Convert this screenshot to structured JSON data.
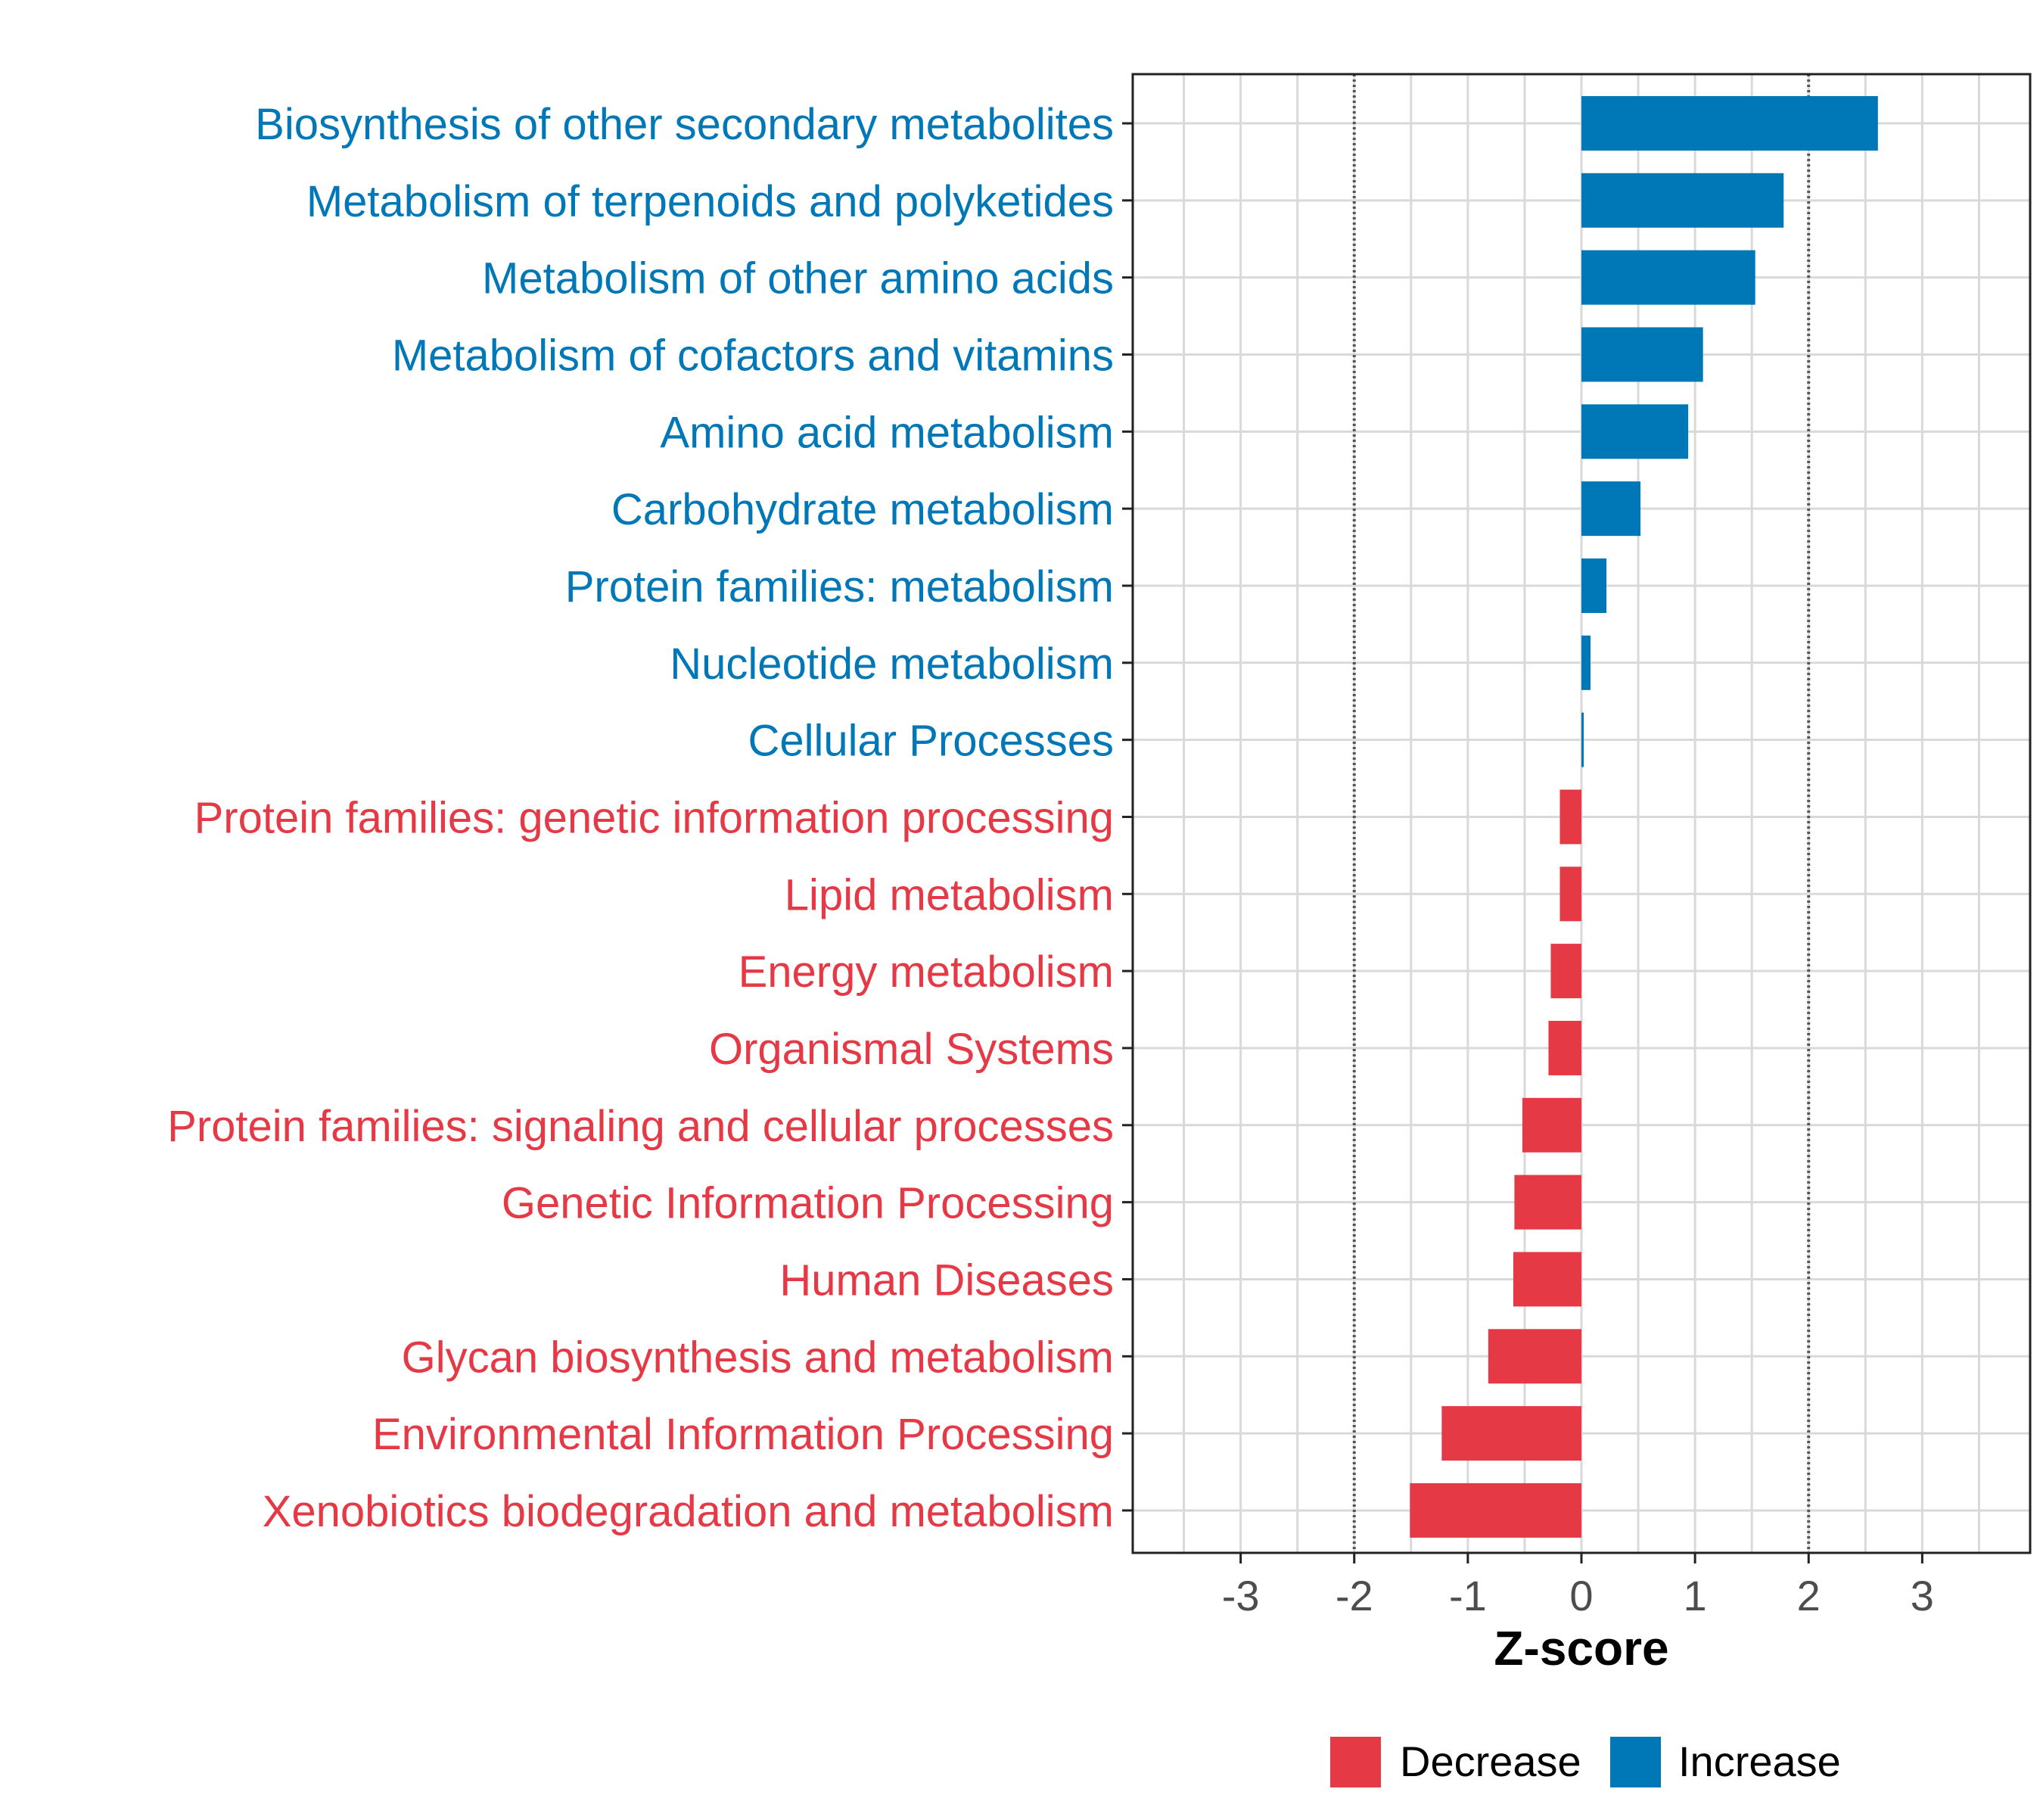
{
  "chart_data": {
    "type": "bar",
    "orientation": "horizontal",
    "title": "",
    "xlabel": "Z-score",
    "ylabel": "",
    "xlim": [
      -3.95,
      3.95
    ],
    "xticks": [
      -3,
      -2,
      -1,
      0,
      1,
      2,
      3
    ],
    "xtick_labels": [
      "-3",
      "-2",
      "-1",
      "0",
      "1",
      "2",
      "3"
    ],
    "reference_lines": [
      -2,
      2
    ],
    "grid": true,
    "legend_position": "bottom",
    "categories": [
      "Biosynthesis of other secondary metabolites",
      "Metabolism of terpenoids and polyketides",
      "Metabolism of other amino acids",
      "Metabolism of cofactors and vitamins",
      "Amino acid metabolism",
      "Carbohydrate metabolism",
      "Protein families: metabolism",
      "Nucleotide metabolism",
      "Cellular Processes",
      "Protein families: genetic information processing",
      "Lipid metabolism",
      "Energy metabolism",
      "Organismal Systems",
      "Protein families: signaling and cellular processes",
      "Genetic Information Processing",
      "Human Diseases",
      "Glycan biosynthesis and metabolism",
      "Environmental Information Processing",
      "Xenobiotics biodegradation and metabolism"
    ],
    "values": [
      2.61,
      1.78,
      1.53,
      1.07,
      0.94,
      0.52,
      0.22,
      0.08,
      0.02,
      -0.19,
      -0.19,
      -0.27,
      -0.29,
      -0.52,
      -0.59,
      -0.6,
      -0.82,
      -1.23,
      -1.51
    ],
    "groups": [
      "Increase",
      "Increase",
      "Increase",
      "Increase",
      "Increase",
      "Increase",
      "Increase",
      "Increase",
      "Increase",
      "Decrease",
      "Decrease",
      "Decrease",
      "Decrease",
      "Decrease",
      "Decrease",
      "Decrease",
      "Decrease",
      "Decrease",
      "Decrease"
    ],
    "legend": [
      {
        "label": "Decrease",
        "color": "#e63946"
      },
      {
        "label": "Increase",
        "color": "#0077b6"
      }
    ]
  },
  "colors": {
    "decrease": "#e63946",
    "increase": "#0077b6",
    "grid": "#d9d9d9",
    "reference_line": "#555555",
    "axis": "#222222",
    "tick_label": "#4d4d4d"
  }
}
